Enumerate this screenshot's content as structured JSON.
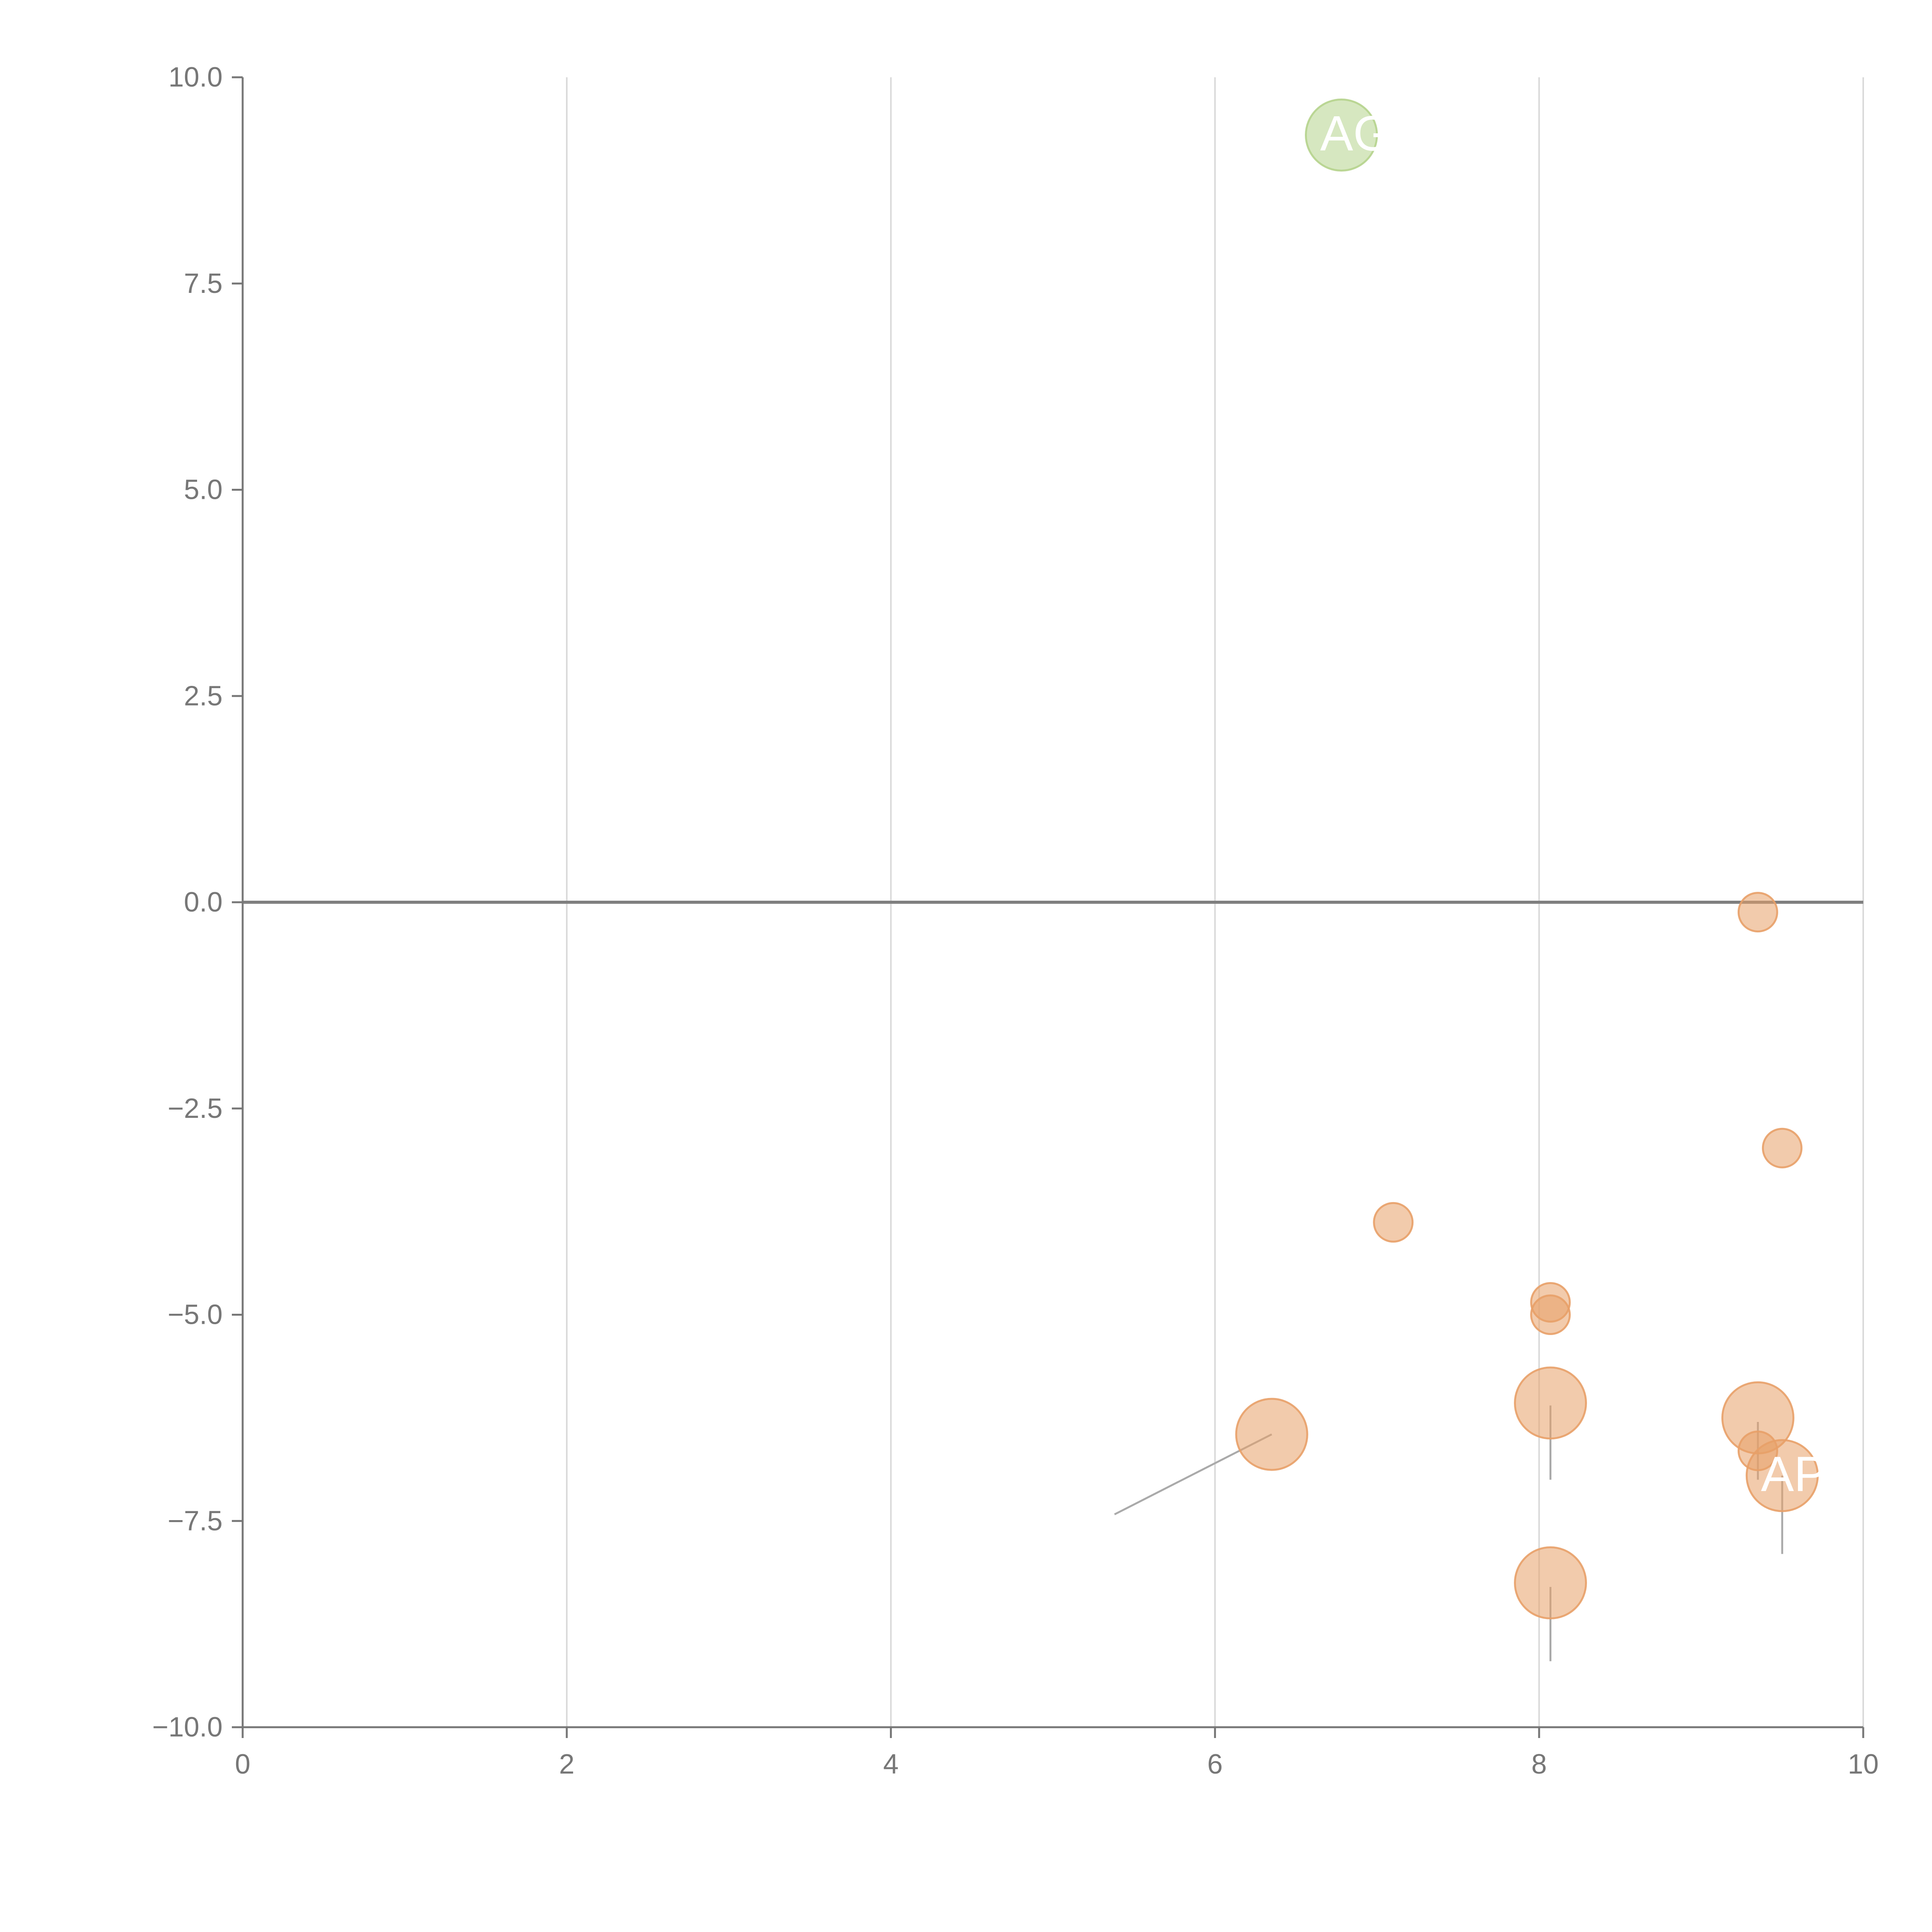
{
  "chart_data": {
    "type": "scatter",
    "title": "",
    "xlabel": "",
    "ylabel": "",
    "xlim": [
      0,
      10
    ],
    "ylim": [
      -10,
      10
    ],
    "x_ticks": [
      0,
      2,
      4,
      6,
      8,
      10
    ],
    "y_ticks": [
      -10,
      -7.5,
      -5,
      -2.5,
      0,
      2.5,
      5,
      7.5,
      10
    ],
    "x_tick_labels": [
      "0",
      "2",
      "4",
      "6",
      "8",
      "10"
    ],
    "y_tick_labels": [
      "−10.0",
      "−7.5",
      "−5.0",
      "−2.5",
      "0.0",
      "2.5",
      "5.0",
      "7.5",
      "10.0"
    ],
    "grid": "vertical",
    "reference_line_y": 0,
    "colors": {
      "positive": "#b5d38c",
      "negative": "#e8a068",
      "axis": "#777777",
      "grid": "#d9d9d9",
      "zero_line": "#7f7f7f",
      "connector": "#aaaaaa"
    },
    "points": [
      {
        "x": 6.78,
        "y": 9.3,
        "size": 3,
        "group": "positive",
        "label": "AG"
      },
      {
        "x": 9.35,
        "y": -0.12,
        "size": 1,
        "group": "negative",
        "label": ""
      },
      {
        "x": 9.5,
        "y": -2.98,
        "size": 1,
        "group": "negative",
        "label": ""
      },
      {
        "x": 7.1,
        "y": -3.88,
        "size": 1,
        "group": "negative",
        "label": ""
      },
      {
        "x": 8.07,
        "y": -4.85,
        "size": 1,
        "group": "negative",
        "label": ""
      },
      {
        "x": 8.07,
        "y": -5.0,
        "size": 1,
        "group": "negative",
        "label": ""
      },
      {
        "x": 8.07,
        "y": -6.07,
        "size": 3,
        "group": "negative",
        "label": ""
      },
      {
        "x": 9.35,
        "y": -6.25,
        "size": 3,
        "group": "negative",
        "label": ""
      },
      {
        "x": 9.35,
        "y": -6.65,
        "size": 1,
        "group": "negative",
        "label": ""
      },
      {
        "x": 6.35,
        "y": -6.45,
        "size": 3,
        "group": "negative",
        "label": ""
      },
      {
        "x": 9.5,
        "y": -6.95,
        "size": 3,
        "group": "negative",
        "label": "AP"
      },
      {
        "x": 8.07,
        "y": -8.25,
        "size": 3,
        "group": "negative",
        "label": ""
      }
    ],
    "connectors": [
      {
        "x1": 6.35,
        "y1": -6.45,
        "x2": 5.38,
        "y2": -7.42
      },
      {
        "x1": 8.07,
        "y1": -6.1,
        "x2": 8.07,
        "y2": -7.0
      },
      {
        "x1": 9.35,
        "y1": -6.3,
        "x2": 9.35,
        "y2": -7.0
      },
      {
        "x1": 9.5,
        "y1": -6.95,
        "x2": 9.5,
        "y2": -7.9
      },
      {
        "x1": 8.07,
        "y1": -8.3,
        "x2": 8.07,
        "y2": -9.2
      }
    ]
  }
}
